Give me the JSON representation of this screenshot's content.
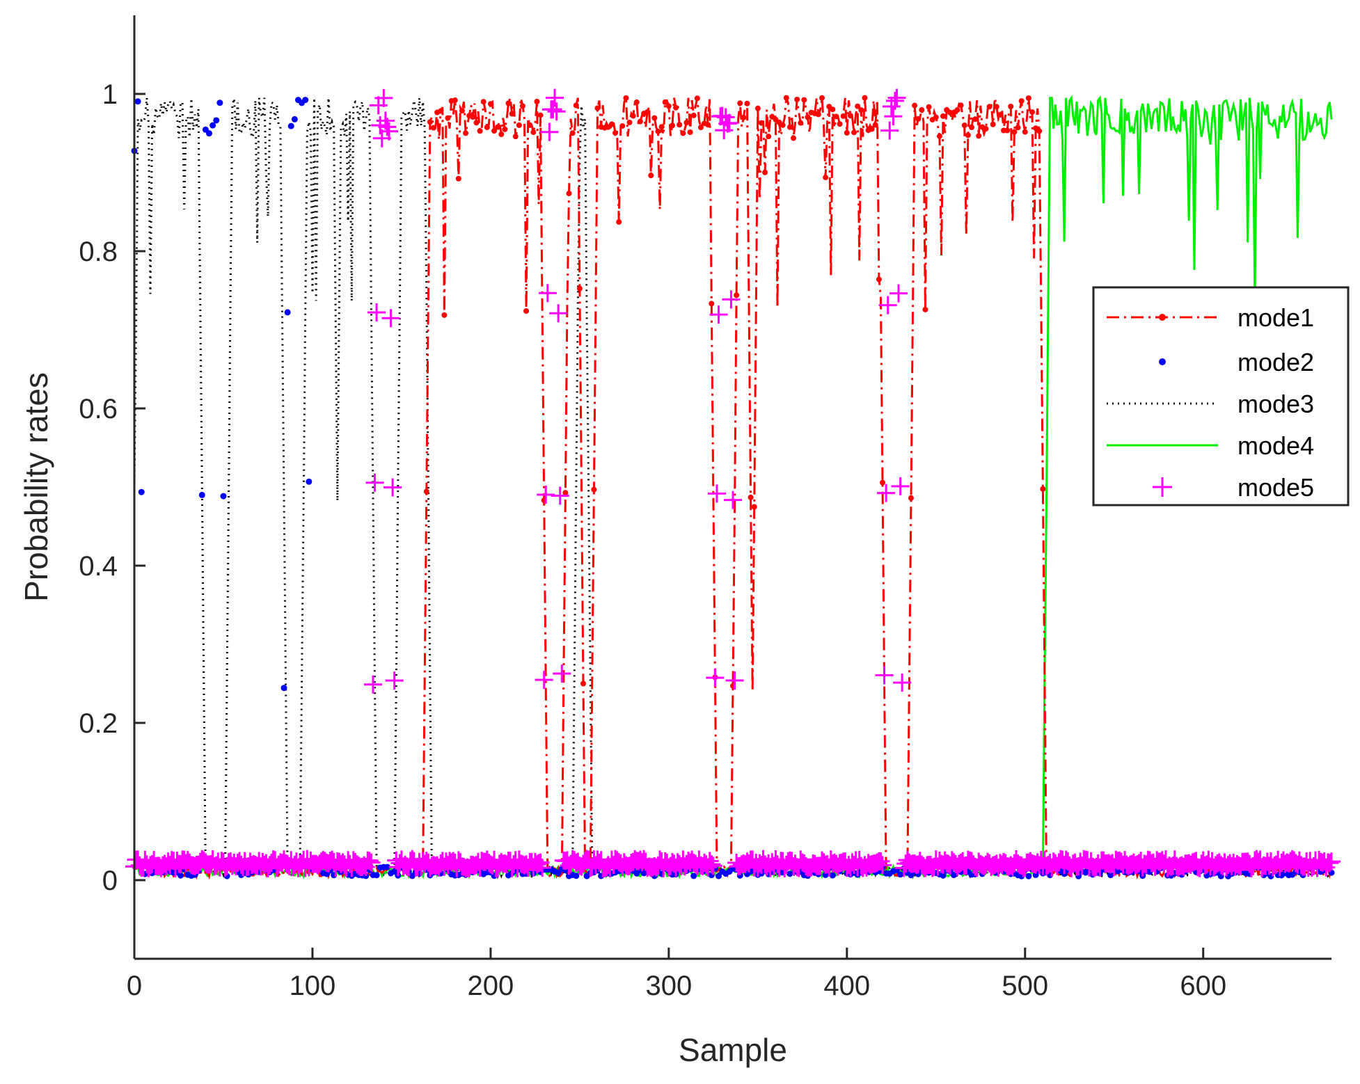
{
  "chart_data": {
    "type": "line",
    "title": "",
    "xlabel": "Sample",
    "ylabel": "Probability rates",
    "xlim": [
      0,
      672
    ],
    "ylim": [
      -0.1,
      1.1
    ],
    "xticks": [
      0,
      100,
      200,
      300,
      400,
      500,
      600
    ],
    "xtick_labels": [
      "0",
      "100",
      "200",
      "300",
      "400",
      "500",
      "600"
    ],
    "yticks": [
      0,
      0.2,
      0.4,
      0.6,
      0.8,
      1
    ],
    "ytick_labels": [
      "0",
      "0.2",
      "0.4",
      "0.6",
      "0.8",
      "1"
    ],
    "grid": false,
    "legend_position": "right",
    "legend_labels": [
      "mode1",
      "mode2",
      "mode3",
      "mode4",
      "mode5"
    ],
    "regimes": [
      {
        "start": 0,
        "end": 2,
        "mode": 2
      },
      {
        "start": 2,
        "end": 36,
        "mode": 3
      },
      {
        "start": 40,
        "end": 48,
        "mode": 2
      },
      {
        "start": 55,
        "end": 82,
        "mode": 3
      },
      {
        "start": 87,
        "end": 96,
        "mode": 2
      },
      {
        "start": 97,
        "end": 112,
        "mode": 3
      },
      {
        "start": 116,
        "end": 132,
        "mode": 3
      },
      {
        "start": 137,
        "end": 143,
        "mode": 5
      },
      {
        "start": 150,
        "end": 163,
        "mode": 3
      },
      {
        "start": 166,
        "end": 228,
        "mode": 1
      },
      {
        "start": 233,
        "end": 237,
        "mode": 5
      },
      {
        "start": 244,
        "end": 249,
        "mode": 1
      },
      {
        "start": 250,
        "end": 253,
        "mode": 3
      },
      {
        "start": 260,
        "end": 323,
        "mode": 1
      },
      {
        "start": 329,
        "end": 334,
        "mode": 5
      },
      {
        "start": 339,
        "end": 344,
        "mode": 1
      },
      {
        "start": 350,
        "end": 418,
        "mode": 1
      },
      {
        "start": 424,
        "end": 428,
        "mode": 5
      },
      {
        "start": 438,
        "end": 508,
        "mode": 1
      },
      {
        "start": 514,
        "end": 672,
        "mode": 4
      }
    ],
    "series": [
      {
        "name": "mode1",
        "color": "#ff0000",
        "line": "dashdot",
        "marker": "dot"
      },
      {
        "name": "mode2",
        "color": "#0000ff",
        "line": "none",
        "marker": "dot"
      },
      {
        "name": "mode3",
        "color": "#000000",
        "line": "dotted",
        "marker": "none"
      },
      {
        "name": "mode4",
        "color": "#00ee00",
        "line": "solid",
        "marker": "none"
      },
      {
        "name": "mode5",
        "color": "#ff00ff",
        "line": "none",
        "marker": "plus"
      }
    ]
  }
}
